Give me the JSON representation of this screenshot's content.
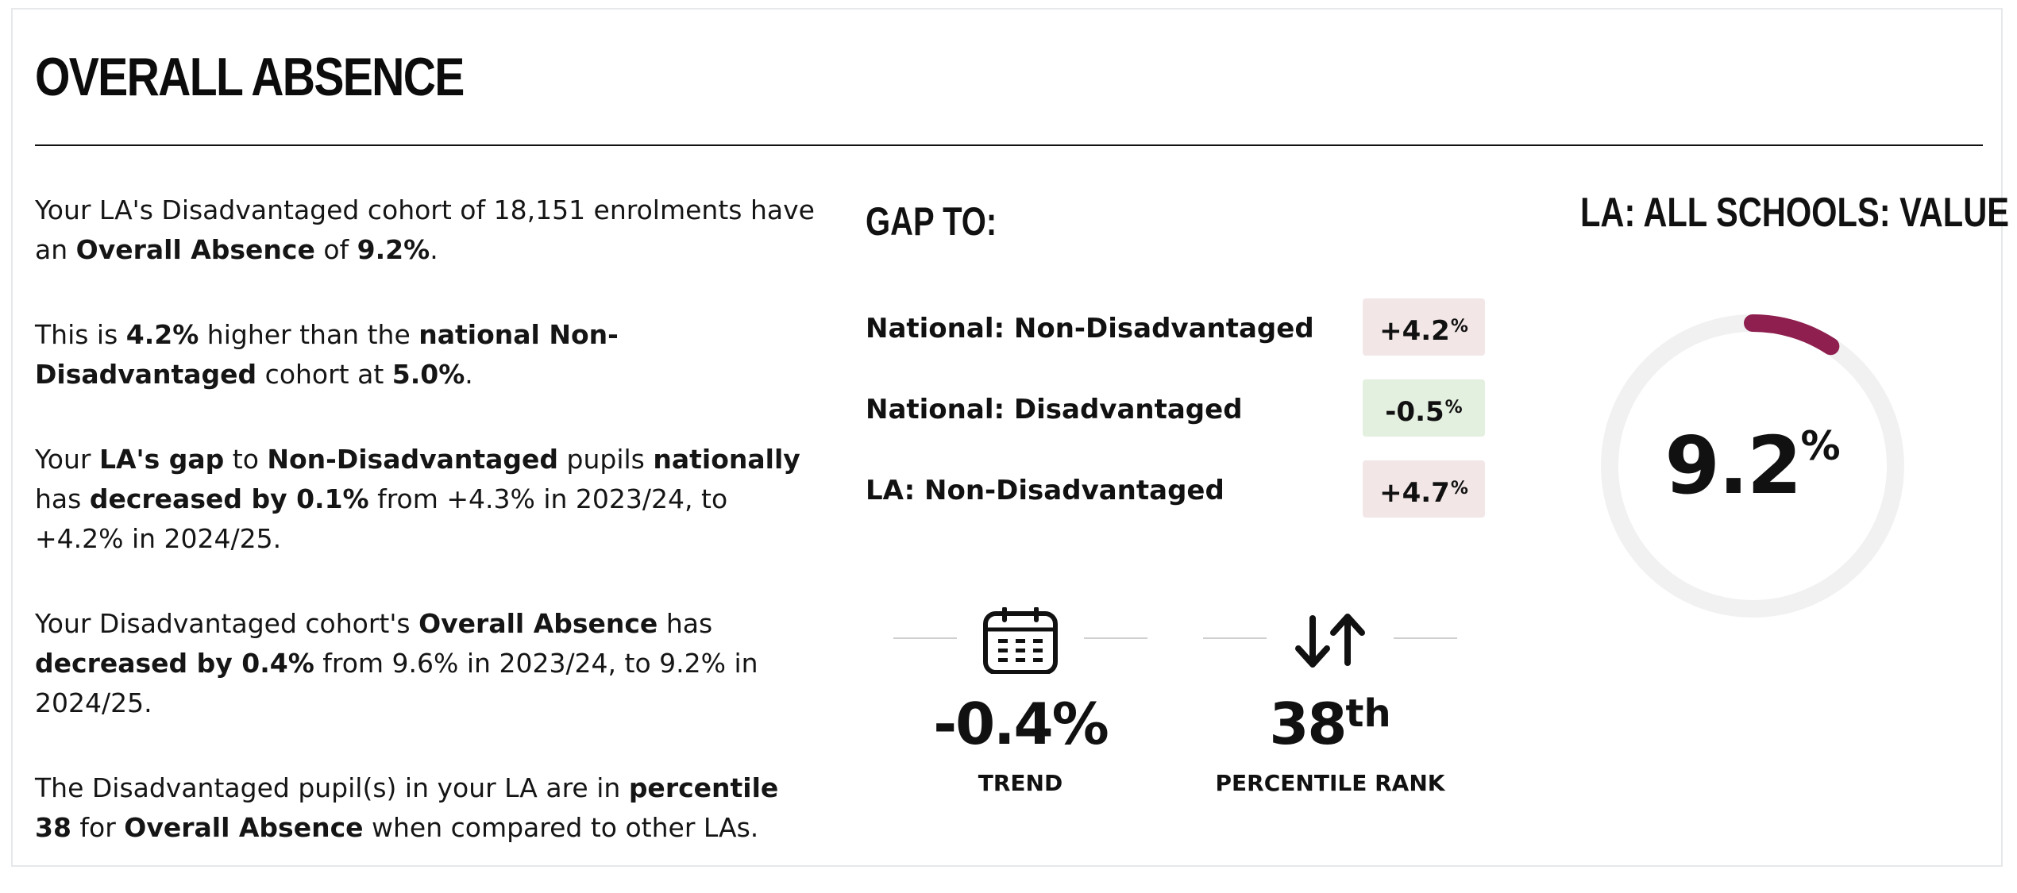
{
  "section": {
    "title": "OVERALL ABSENCE"
  },
  "narrative": [
    [
      {
        "text": "Your LA's Disadvantaged cohort of 18,151 enrolments have an ",
        "bold": false
      },
      {
        "text": "Overall Absence",
        "bold": true
      },
      {
        "text": " of ",
        "bold": false
      },
      {
        "text": "9.2%",
        "bold": true
      },
      {
        "text": ".",
        "bold": false
      }
    ],
    [
      {
        "text": "This is ",
        "bold": false
      },
      {
        "text": "4.2%",
        "bold": true
      },
      {
        "text": " higher than the ",
        "bold": false
      },
      {
        "text": "national Non-Disadvantaged",
        "bold": true
      },
      {
        "text": " cohort at ",
        "bold": false
      },
      {
        "text": "5.0%",
        "bold": true
      },
      {
        "text": ".",
        "bold": false
      }
    ],
    [
      {
        "text": "Your ",
        "bold": false
      },
      {
        "text": "LA's gap",
        "bold": true
      },
      {
        "text": " to ",
        "bold": false
      },
      {
        "text": "Non-Disadvantaged",
        "bold": true
      },
      {
        "text": " pupils ",
        "bold": false
      },
      {
        "text": "nationally",
        "bold": true
      },
      {
        "text": " has ",
        "bold": false
      },
      {
        "text": "decreased by 0.1%",
        "bold": true
      },
      {
        "text": " from +4.3% in 2023/24, to +4.2% in 2024/25.",
        "bold": false
      }
    ],
    [
      {
        "text": "Your Disadvantaged cohort's ",
        "bold": false
      },
      {
        "text": "Overall Absence",
        "bold": true
      },
      {
        "text": " has ",
        "bold": false
      },
      {
        "text": "decreased by 0.4%",
        "bold": true
      },
      {
        "text": " from 9.6% in 2023/24, to 9.2% in 2024/25.",
        "bold": false
      }
    ],
    [
      {
        "text": "The Disadvantaged pupil(s) in your LA are in ",
        "bold": false
      },
      {
        "text": "percentile 38",
        "bold": true
      },
      {
        "text": " for ",
        "bold": false
      },
      {
        "text": "Overall Absence",
        "bold": true
      },
      {
        "text": " when compared to other LAs.",
        "bold": false
      }
    ]
  ],
  "gap": {
    "heading": "GAP TO:",
    "rows": [
      {
        "label": "National: Non-Disadvantaged",
        "value": "+4.2",
        "unit": "%",
        "status_color": "#f2e6e6"
      },
      {
        "label": "National: Disadvantaged",
        "value": "-0.5",
        "unit": "%",
        "status_color": "#e3efdf"
      },
      {
        "label": "LA: Non-Disadvantaged",
        "value": "+4.7",
        "unit": "%",
        "status_color": "#f2e6e6"
      }
    ]
  },
  "trend": {
    "icon": "calendar-icon",
    "value": "-0.4%",
    "label": "TREND"
  },
  "percentile": {
    "icon": "sort-arrows-icon",
    "value": "38",
    "suffix": "th",
    "label": "PERCENTILE RANK"
  },
  "gauge": {
    "title": "LA: ALL SCHOOLS: VALUE",
    "value": "9.2",
    "unit": "%",
    "percent": 9.2,
    "track_color": "#f1f1f1",
    "fill_color": "#8e1f4f"
  }
}
